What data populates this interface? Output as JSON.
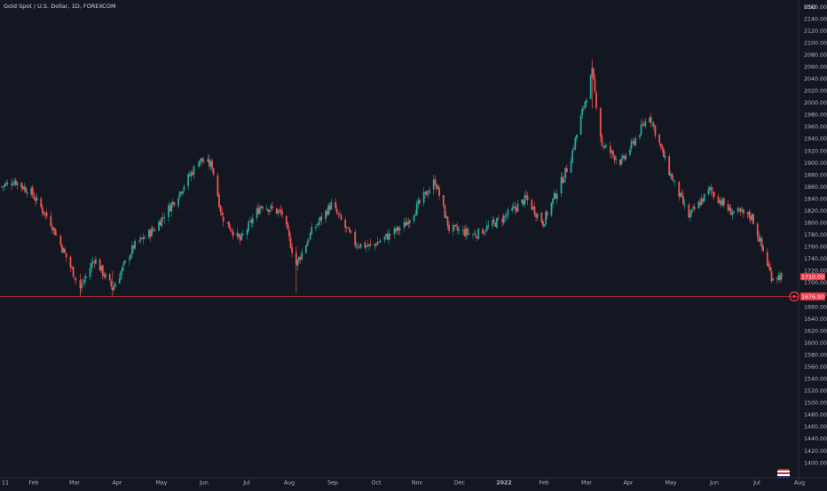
{
  "header": {
    "title": "Gold Spot / U.S. Dollar, 1D, FOREXCOM",
    "currency": "USD"
  },
  "colors": {
    "background": "#131722",
    "up": "#26a69a",
    "down": "#ef5350",
    "axis_text": "#b2b5be",
    "axis_line": "#2a2e39",
    "price_label": "#f23645",
    "alert_line": "#b22833"
  },
  "labels": {
    "last_price": "1710.00",
    "alert_price": "1676.90",
    "alert_icon": "alert-clock-icon",
    "flag_icon": "us-flag-icon"
  },
  "chart_data": {
    "type": "candlestick",
    "title": "Gold Spot / U.S. Dollar, 1D, FOREXCOM",
    "ylabel": "USD",
    "y_ticks": [
      "2160.00",
      "2140.00",
      "2120.00",
      "2100.00",
      "2080.00",
      "2060.00",
      "2040.00",
      "2020.00",
      "2000.00",
      "1980.00",
      "1960.00",
      "1940.00",
      "1920.00",
      "1900.00",
      "1880.00",
      "1860.00",
      "1840.00",
      "1820.00",
      "1800.00",
      "1780.00",
      "1760.00",
      "1740.00",
      "1720.00",
      "1700.00",
      "1680.00",
      "1660.00",
      "1640.00",
      "1620.00",
      "1600.00",
      "1580.00",
      "1560.00",
      "1540.00",
      "1520.00",
      "1500.00",
      "1480.00",
      "1460.00",
      "1440.00",
      "1420.00",
      "1400.00"
    ],
    "x_ticks": [
      "11",
      "Feb",
      "Mar",
      "Apr",
      "May",
      "Jun",
      "Jul",
      "Aug",
      "Sep",
      "Oct",
      "Nov",
      "Dec",
      "2022",
      "Feb",
      "Mar",
      "Apr",
      "May",
      "Jun",
      "Jul",
      "Aug"
    ],
    "x_range": [
      "2021-01-11",
      "2022-08-01"
    ],
    "ylim": [
      1400,
      2160
    ],
    "last_price": 1710.0,
    "alert_level": 1676.9,
    "price_path": [
      [
        "2021-01-11",
        1860
      ],
      [
        "2021-01-20",
        1870
      ],
      [
        "2021-02-01",
        1850
      ],
      [
        "2021-02-15",
        1800
      ],
      [
        "2021-03-08",
        1690
      ],
      [
        "2021-03-18",
        1740
      ],
      [
        "2021-03-31",
        1690
      ],
      [
        "2021-04-15",
        1760
      ],
      [
        "2021-04-30",
        1790
      ],
      [
        "2021-05-15",
        1840
      ],
      [
        "2021-06-01",
        1905
      ],
      [
        "2021-06-10",
        1895
      ],
      [
        "2021-06-17",
        1810
      ],
      [
        "2021-06-30",
        1770
      ],
      [
        "2021-07-15",
        1830
      ],
      [
        "2021-07-30",
        1815
      ],
      [
        "2021-08-09",
        1730
      ],
      [
        "2021-08-20",
        1785
      ],
      [
        "2021-09-03",
        1830
      ],
      [
        "2021-09-20",
        1765
      ],
      [
        "2021-10-01",
        1760
      ],
      [
        "2021-10-25",
        1795
      ],
      [
        "2021-11-16",
        1870
      ],
      [
        "2021-11-26",
        1790
      ],
      [
        "2021-12-15",
        1780
      ],
      [
        "2022-01-05",
        1810
      ],
      [
        "2022-01-20",
        1840
      ],
      [
        "2022-02-01",
        1800
      ],
      [
        "2022-02-20",
        1900
      ],
      [
        "2022-03-08",
        2050
      ],
      [
        "2022-03-15",
        1930
      ],
      [
        "2022-03-29",
        1900
      ],
      [
        "2022-04-18",
        1980
      ],
      [
        "2022-05-01",
        1890
      ],
      [
        "2022-05-16",
        1810
      ],
      [
        "2022-05-31",
        1855
      ],
      [
        "2022-06-14",
        1820
      ],
      [
        "2022-06-30",
        1810
      ],
      [
        "2022-07-14",
        1710
      ],
      [
        "2022-07-21",
        1711
      ]
    ]
  }
}
